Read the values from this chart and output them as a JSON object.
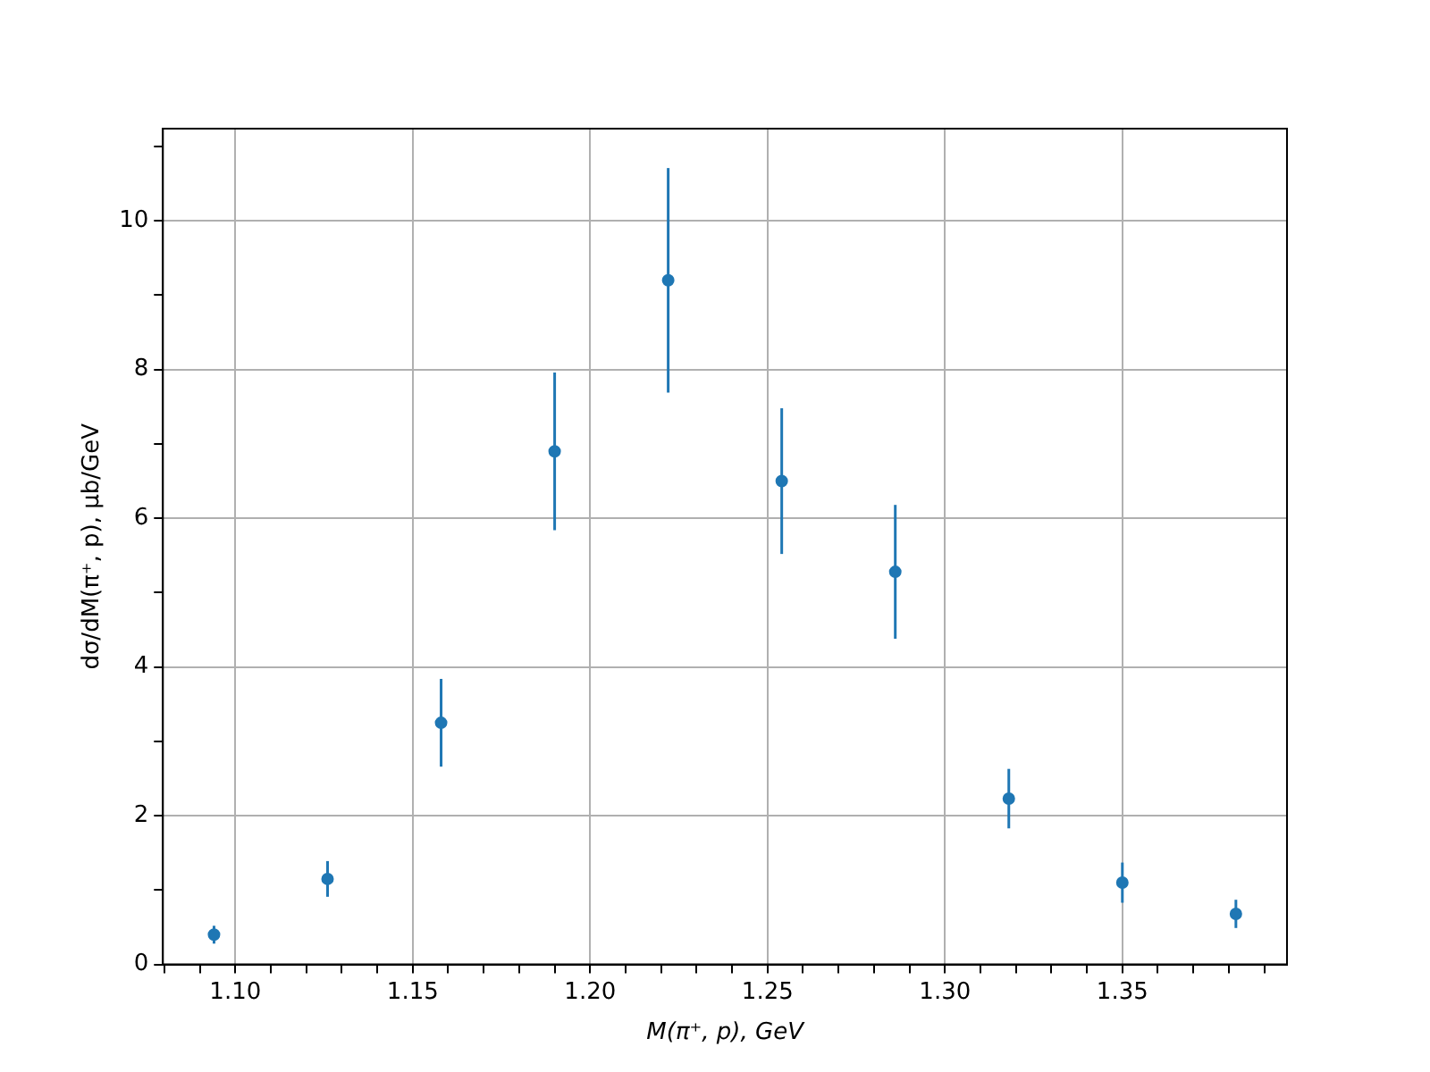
{
  "chart_data": {
    "type": "scatter",
    "xlabel": "M(π⁺, p), GeV",
    "ylabel": "dσ/dM(π⁺, p), μb/GeV",
    "x": [
      1.094,
      1.126,
      1.158,
      1.19,
      1.222,
      1.254,
      1.286,
      1.318,
      1.35,
      1.382
    ],
    "values": [
      0.4,
      1.15,
      3.25,
      6.9,
      9.2,
      6.5,
      5.28,
      2.23,
      1.1,
      0.68
    ],
    "errors": [
      0.12,
      0.24,
      0.59,
      1.06,
      1.51,
      0.98,
      0.9,
      0.4,
      0.27,
      0.19
    ],
    "color": "#1f77b4",
    "marker": "circle",
    "grid": true,
    "xlim": [
      1.0796,
      1.3964
    ],
    "ylim": [
      0,
      11.24
    ],
    "xticks": [
      {
        "value": 1.08,
        "label": null
      },
      {
        "value": 1.09,
        "label": null
      },
      "1.10",
      {
        "value": 1.11,
        "label": null
      },
      {
        "value": 1.12,
        "label": null
      },
      {
        "value": 1.13,
        "label": null
      },
      {
        "value": 1.14,
        "label": null
      },
      {
        "value": 1.15,
        "label": "1.15"
      },
      {
        "value": 1.16,
        "label": null
      },
      {
        "value": 1.17,
        "label": null
      },
      {
        "value": 1.18,
        "label": null
      },
      {
        "value": 1.19,
        "label": null
      },
      {
        "value": 1.2,
        "label": "1.20"
      },
      {
        "value": 1.21,
        "label": null
      },
      {
        "value": 1.22,
        "label": null
      },
      {
        "value": 1.23,
        "label": null
      },
      {
        "value": 1.24,
        "label": null
      },
      {
        "value": 1.25,
        "label": "1.25"
      },
      {
        "value": 1.26,
        "label": null
      },
      {
        "value": 1.27,
        "label": null
      },
      {
        "value": 1.28,
        "label": null
      },
      {
        "value": 1.29,
        "label": null
      },
      {
        "value": 1.3,
        "label": "1.30"
      },
      {
        "value": 1.31,
        "label": null
      },
      {
        "value": 1.32,
        "label": null
      },
      {
        "value": 1.33,
        "label": null
      },
      {
        "value": 1.34,
        "label": null
      },
      {
        "value": 1.35,
        "label": "1.35"
      },
      {
        "value": 1.36,
        "label": null
      },
      {
        "value": 1.37,
        "label": null
      },
      {
        "value": 1.38,
        "label": null
      },
      {
        "value": 1.39,
        "label": null
      }
    ],
    "yticks": [
      0,
      {
        "value": 1,
        "label": null
      },
      2,
      {
        "value": 3,
        "label": null
      },
      4,
      {
        "value": 5,
        "label": null
      },
      6,
      {
        "value": 7,
        "label": null
      },
      8,
      {
        "value": 9,
        "label": null
      },
      10,
      {
        "value": 11,
        "label": null
      }
    ]
  }
}
